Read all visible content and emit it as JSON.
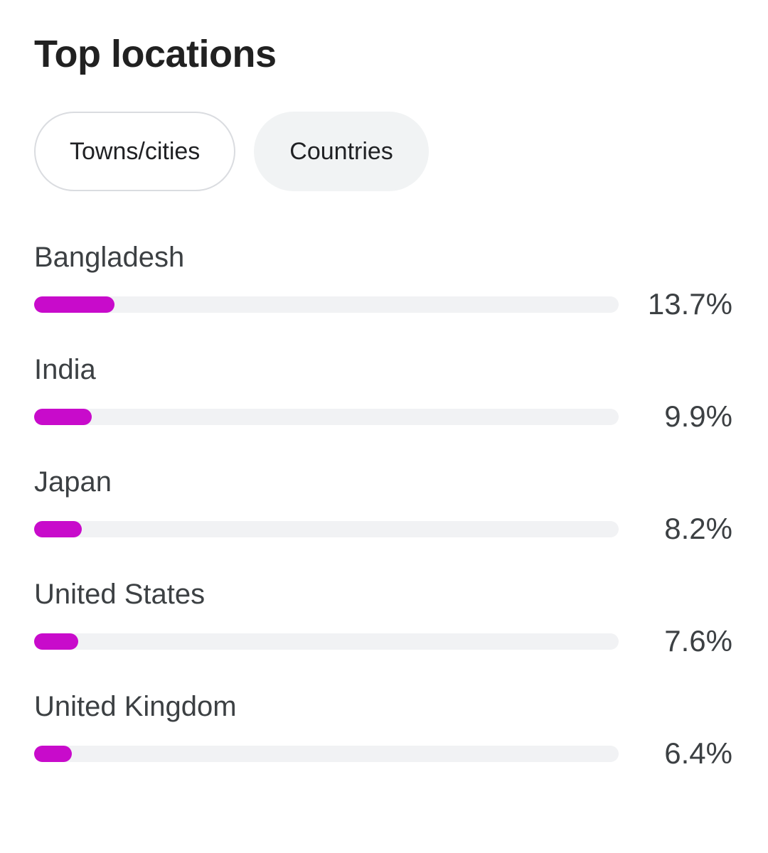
{
  "page": {
    "title": "Top locations"
  },
  "tabs": [
    {
      "label": "Towns/cities",
      "selected": false
    },
    {
      "label": "Countries",
      "selected": true
    }
  ],
  "chart_data": {
    "type": "bar",
    "orientation": "horizontal",
    "title": "Top locations",
    "categories": [
      "Bangladesh",
      "India",
      "Japan",
      "United States",
      "United Kingdom"
    ],
    "values": [
      13.7,
      9.9,
      8.2,
      7.6,
      6.4
    ],
    "value_labels": [
      "13.7%",
      "9.9%",
      "8.2%",
      "7.6%",
      "6.4%"
    ],
    "xlim": [
      0,
      100
    ],
    "grid": false,
    "legend": false,
    "bar_color": "#c80bcb",
    "track_color": "#f1f2f4"
  }
}
